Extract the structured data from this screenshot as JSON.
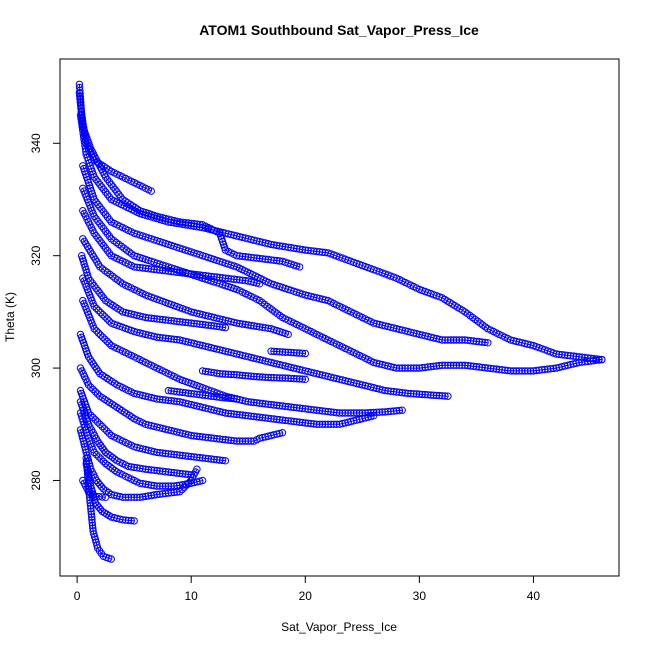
{
  "chart_data": {
    "type": "scatter",
    "title": "ATOM1 Southbound Sat_Vapor_Press_Ice",
    "xlabel": "Sat_Vapor_Press_Ice",
    "ylabel": "Theta (K)",
    "xlim": [
      -1.5,
      47.5
    ],
    "ylim": [
      263,
      355
    ],
    "xticks": [
      0,
      10,
      20,
      30,
      40
    ],
    "yticks": [
      280,
      300,
      320,
      340
    ],
    "grid": false,
    "legend": "none",
    "marker": "open-circle",
    "series_color": "#0000ff",
    "traces": [
      [
        [
          0.2,
          350.5
        ],
        [
          0.4,
          345
        ],
        [
          0.8,
          340
        ],
        [
          1.5,
          337
        ],
        [
          3,
          335
        ],
        [
          5,
          333
        ],
        [
          6.5,
          331.5
        ]
      ],
      [
        [
          0.2,
          349
        ],
        [
          0.5,
          343
        ],
        [
          1.2,
          339
        ],
        [
          2.5,
          334
        ],
        [
          4,
          330
        ],
        [
          5.5,
          328
        ],
        [
          7,
          327
        ],
        [
          9,
          326
        ],
        [
          11,
          325.5
        ],
        [
          12.5,
          324
        ],
        [
          13,
          321
        ],
        [
          14,
          320
        ],
        [
          16,
          319.5
        ],
        [
          18,
          319
        ],
        [
          19.5,
          318
        ]
      ],
      [
        [
          0.3,
          345
        ],
        [
          0.8,
          338
        ],
        [
          1.5,
          334
        ],
        [
          3,
          330
        ],
        [
          5.5,
          327.5
        ],
        [
          8,
          326
        ],
        [
          11,
          325
        ],
        [
          14,
          323.5
        ],
        [
          17,
          322
        ],
        [
          20,
          321
        ],
        [
          22,
          320.5
        ],
        [
          24,
          319
        ],
        [
          26,
          317.5
        ],
        [
          28,
          316
        ],
        [
          30,
          314
        ],
        [
          32,
          312.5
        ],
        [
          34,
          310
        ],
        [
          36,
          307
        ],
        [
          38,
          305
        ],
        [
          40,
          304
        ],
        [
          42,
          302.5
        ],
        [
          44,
          302
        ],
        [
          46,
          301.5
        ]
      ],
      [
        [
          0.5,
          336
        ],
        [
          1.5,
          330
        ],
        [
          3,
          326
        ],
        [
          5,
          324
        ],
        [
          8,
          322
        ],
        [
          11,
          320
        ],
        [
          14,
          318
        ],
        [
          17,
          315
        ],
        [
          20,
          313
        ],
        [
          22,
          312
        ],
        [
          24,
          310
        ],
        [
          26,
          308
        ],
        [
          28,
          307
        ],
        [
          30,
          306
        ],
        [
          32,
          305
        ],
        [
          34,
          305
        ],
        [
          36,
          304.5
        ]
      ],
      [
        [
          0.5,
          332
        ],
        [
          1.5,
          327
        ],
        [
          3,
          323
        ],
        [
          5,
          320
        ],
        [
          8,
          318
        ],
        [
          11,
          316
        ],
        [
          14,
          314
        ],
        [
          16,
          312
        ],
        [
          18,
          309
        ],
        [
          20,
          307
        ],
        [
          22,
          305
        ],
        [
          24,
          303
        ],
        [
          26,
          301
        ],
        [
          28,
          300
        ],
        [
          30,
          300
        ],
        [
          32,
          300.5
        ],
        [
          34,
          300.5
        ],
        [
          36,
          300
        ],
        [
          38,
          299.5
        ],
        [
          40,
          299.5
        ],
        [
          42,
          300
        ],
        [
          44,
          301
        ],
        [
          46,
          301.5
        ]
      ],
      [
        [
          0.5,
          328
        ],
        [
          1.5,
          324
        ],
        [
          3,
          320
        ],
        [
          5,
          318
        ],
        [
          7,
          317.5
        ],
        [
          9,
          317
        ],
        [
          11,
          316.5
        ],
        [
          13,
          316
        ],
        [
          15,
          315.5
        ],
        [
          16,
          315
        ]
      ],
      [
        [
          0.5,
          323
        ],
        [
          2,
          318
        ],
        [
          4,
          315
        ],
        [
          6,
          313
        ],
        [
          8,
          311.5
        ],
        [
          10,
          310
        ],
        [
          12,
          309
        ],
        [
          14,
          308
        ],
        [
          15.5,
          307.5
        ],
        [
          17,
          307
        ],
        [
          18.5,
          306
        ]
      ],
      [
        [
          0.4,
          320
        ],
        [
          1,
          316
        ],
        [
          2.5,
          312
        ],
        [
          4,
          310
        ],
        [
          6,
          309
        ],
        [
          8,
          308.5
        ],
        [
          10,
          308
        ],
        [
          12,
          307.5
        ],
        [
          13,
          307.2
        ]
      ],
      [
        [
          0.5,
          316
        ],
        [
          1.5,
          311
        ],
        [
          3,
          308
        ],
        [
          5,
          306.5
        ],
        [
          7,
          305.5
        ],
        [
          9,
          305
        ],
        [
          11,
          304
        ],
        [
          13,
          303
        ],
        [
          15,
          302
        ],
        [
          17,
          301
        ],
        [
          19,
          300
        ],
        [
          21,
          299
        ],
        [
          23,
          298
        ],
        [
          25,
          297
        ],
        [
          27,
          296
        ],
        [
          29,
          295.5
        ],
        [
          31,
          295.2
        ],
        [
          32.5,
          295
        ]
      ],
      [
        [
          0.5,
          312
        ],
        [
          1.5,
          307
        ],
        [
          3,
          304
        ],
        [
          5,
          302
        ],
        [
          7,
          300
        ],
        [
          9,
          298
        ],
        [
          11,
          296.5
        ],
        [
          13,
          295
        ],
        [
          15,
          294
        ],
        [
          17,
          293.5
        ],
        [
          19,
          293
        ],
        [
          21,
          292.5
        ],
        [
          23,
          292
        ],
        [
          25,
          292
        ],
        [
          27,
          292.2
        ],
        [
          28.5,
          292.5
        ]
      ],
      [
        [
          0.3,
          306
        ],
        [
          1,
          302
        ],
        [
          2,
          299
        ],
        [
          3.5,
          297
        ],
        [
          5,
          295.5
        ],
        [
          7,
          294.5
        ],
        [
          9,
          294
        ],
        [
          11,
          293
        ],
        [
          13,
          292
        ],
        [
          15,
          291.5
        ],
        [
          17,
          291
        ],
        [
          19,
          290.5
        ],
        [
          21,
          290
        ],
        [
          23,
          290
        ],
        [
          25,
          291
        ],
        [
          26,
          291.5
        ]
      ],
      [
        [
          0.3,
          300
        ],
        [
          1,
          297
        ],
        [
          2,
          295
        ],
        [
          3.5,
          293
        ],
        [
          5,
          291
        ],
        [
          6,
          290
        ],
        [
          7,
          289.5
        ],
        [
          8,
          289
        ],
        [
          10,
          288
        ],
        [
          12,
          287.5
        ],
        [
          14,
          287
        ],
        [
          15.5,
          287
        ],
        [
          16,
          287.5
        ],
        [
          17,
          288
        ],
        [
          18,
          288.5
        ]
      ],
      [
        [
          0.3,
          296
        ],
        [
          1,
          292
        ],
        [
          2,
          290
        ],
        [
          3,
          288
        ],
        [
          4,
          287
        ],
        [
          5,
          286
        ],
        [
          7,
          285
        ],
        [
          9,
          284.5
        ],
        [
          11,
          284
        ],
        [
          13,
          283.5
        ]
      ],
      [
        [
          0.3,
          294
        ],
        [
          1,
          290
        ],
        [
          1.8,
          287
        ],
        [
          2.5,
          285
        ],
        [
          3.5,
          283.5
        ],
        [
          4.5,
          282.5
        ],
        [
          6,
          282
        ],
        [
          8,
          281.5
        ],
        [
          10,
          281
        ]
      ],
      [
        [
          0.3,
          292
        ],
        [
          0.9,
          288
        ],
        [
          1.5,
          285
        ],
        [
          2.5,
          283
        ],
        [
          3.5,
          281.5
        ],
        [
          4.5,
          280.5
        ],
        [
          5.5,
          279.5
        ],
        [
          7,
          279
        ],
        [
          8.5,
          279
        ],
        [
          10,
          279.5
        ],
        [
          11,
          280
        ]
      ],
      [
        [
          0.3,
          289
        ],
        [
          0.8,
          285
        ],
        [
          1.2,
          282
        ],
        [
          1.7,
          280
        ],
        [
          2.3,
          278.5
        ],
        [
          3,
          277.5
        ],
        [
          4,
          277
        ],
        [
          5.5,
          277
        ],
        [
          7,
          277.5
        ],
        [
          9,
          278
        ],
        [
          10,
          280
        ],
        [
          10.5,
          282
        ]
      ],
      [
        [
          0.8,
          284
        ],
        [
          1,
          279
        ],
        [
          1.2,
          275
        ],
        [
          1.4,
          271
        ],
        [
          1.8,
          268
        ],
        [
          2.3,
          266.5
        ],
        [
          3,
          266
        ]
      ],
      [
        [
          0.8,
          283
        ],
        [
          1.2,
          279
        ],
        [
          1.6,
          276
        ],
        [
          2.2,
          274.5
        ],
        [
          3,
          273.5
        ],
        [
          4,
          273
        ],
        [
          5,
          272.8
        ]
      ],
      [
        [
          0.5,
          280
        ],
        [
          1,
          278
        ],
        [
          1.6,
          277.2
        ],
        [
          2.5,
          277
        ]
      ],
      [
        [
          11,
          299.5
        ],
        [
          12.5,
          299
        ],
        [
          14,
          298.8
        ],
        [
          15.5,
          298.5
        ],
        [
          17,
          298.3
        ],
        [
          18.5,
          298.2
        ],
        [
          20,
          298
        ]
      ],
      [
        [
          8,
          296
        ],
        [
          9.5,
          295.6
        ],
        [
          11,
          295.2
        ],
        [
          12.5,
          294.8
        ],
        [
          14,
          294.5
        ]
      ],
      [
        [
          17,
          303
        ],
        [
          18.5,
          302.8
        ],
        [
          20,
          302.6
        ]
      ]
    ]
  }
}
